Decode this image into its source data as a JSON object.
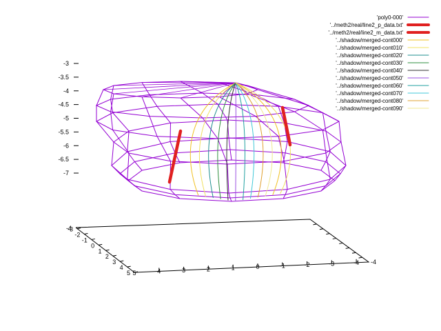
{
  "chart_data": {
    "type": "surface3d",
    "z_axis": {
      "ticks": [
        "-3",
        "-3.5",
        "-4",
        "-4.5",
        "-5",
        "-5.5",
        "-6",
        "-6.5",
        "-7"
      ],
      "range": [
        -7,
        -3
      ]
    },
    "y_axis": {
      "ticks": [
        "-4",
        "-3",
        "-2",
        "-1",
        "0",
        "1",
        "2",
        "3",
        "4",
        "5"
      ]
    },
    "x_axis": {
      "ticks": [
        "-4",
        "-3",
        "-2",
        "-1",
        "0",
        "1",
        "2",
        "3",
        "4",
        "5"
      ]
    },
    "grid": false,
    "legend_placement": "top-right",
    "series": [
      {
        "name": "'poly0-000'",
        "color": "#9400d3",
        "style": "wireframe"
      },
      {
        "name": "'../meth2/real/line2_p_data.txt'",
        "color": "#e02020",
        "style": "thick-line"
      },
      {
        "name": "'../meth2/real/line2_m_data.txt'",
        "color": "#e02020",
        "style": "thick-line"
      },
      {
        "name": "'../shadow/merged-cont000'",
        "color": "#f0c020",
        "style": "line"
      },
      {
        "name": "'../shadow/merged-cont010'",
        "color": "#f0e060",
        "style": "line"
      },
      {
        "name": "'../shadow/merged-cont020'",
        "color": "#1e8f8f",
        "style": "line"
      },
      {
        "name": "'../shadow/merged-cont030'",
        "color": "#2f8f3f",
        "style": "line"
      },
      {
        "name": "'../shadow/merged-cont040'",
        "color": "#303030",
        "style": "line"
      },
      {
        "name": "'../shadow/merged-cont050'",
        "color": "#9a4fe0",
        "style": "line"
      },
      {
        "name": "'../shadow/merged-cont060'",
        "color": "#20a0a0",
        "style": "line"
      },
      {
        "name": "'../shadow/merged-cont070'",
        "color": "#40c8d8",
        "style": "line"
      },
      {
        "name": "'../shadow/merged-cont080'",
        "color": "#e0a030",
        "style": "line"
      },
      {
        "name": "'../shadow/merged-cont090'",
        "color": "#f0e890",
        "style": "line"
      }
    ]
  }
}
